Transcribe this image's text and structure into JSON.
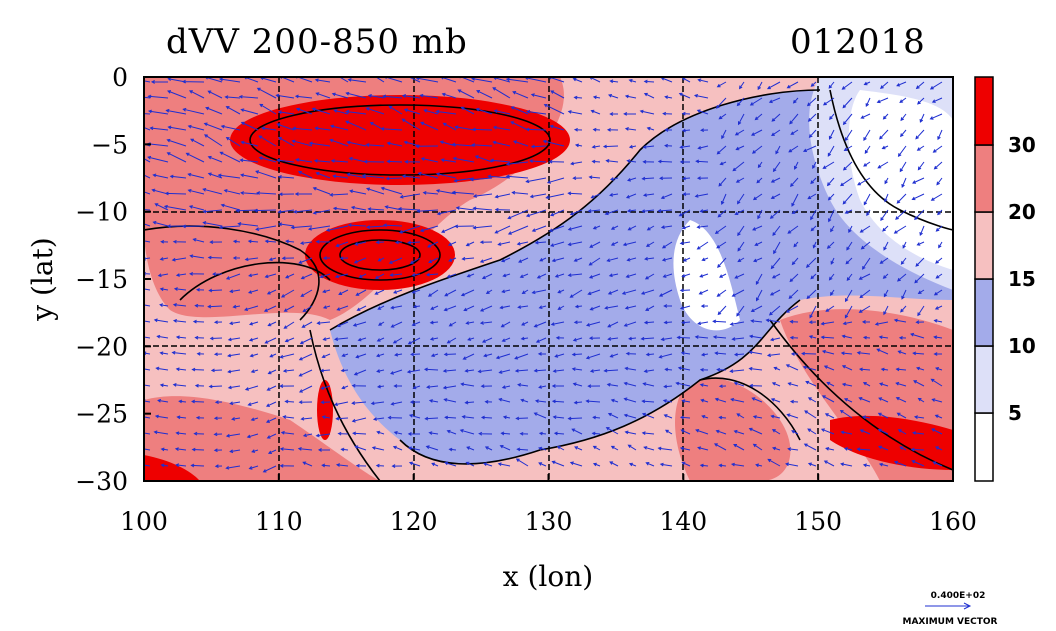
{
  "title": {
    "left": "dVV 200-850 mb",
    "right": "012018"
  },
  "chart_data": {
    "type": "heatmap",
    "xlabel": "x (lon)",
    "ylabel": "y (lat)",
    "xlim": [
      100,
      160
    ],
    "ylim": [
      -30,
      0
    ],
    "x_ticks": [
      "100",
      "110",
      "120",
      "130",
      "140",
      "150",
      "160"
    ],
    "y_ticks": [
      "0",
      "−5",
      "−10",
      "−15",
      "−20",
      "−25",
      "−30"
    ],
    "grid": true,
    "colorbar": {
      "levels": [
        "5",
        "10",
        "15",
        "20",
        "30"
      ],
      "colors": [
        "#ffffff",
        "#dde0f8",
        "#a3abea",
        "#f6c0c0",
        "#ee7f7f",
        "#ee0000"
      ]
    },
    "vector_key": {
      "value": "0.400E+02",
      "label": "MAXIMUM VECTOR"
    },
    "regions": [
      {
        "name": "northwest-max",
        "level": 6,
        "center": [
          116,
          -4
        ],
        "size": [
          12,
          3
        ]
      },
      {
        "name": "central-max",
        "level": 6,
        "center": [
          116,
          -13.5
        ],
        "size": [
          6,
          2.8
        ]
      },
      {
        "name": "southeast-max",
        "level": 6,
        "center": [
          156,
          -26
        ],
        "size": [
          7,
          2
        ]
      },
      {
        "name": "east-low",
        "level": 1,
        "center": [
          155,
          -6
        ],
        "size": [
          7,
          6
        ]
      }
    ]
  },
  "colors": {
    "vector": "#1f2fd0",
    "contour": "#000000"
  }
}
